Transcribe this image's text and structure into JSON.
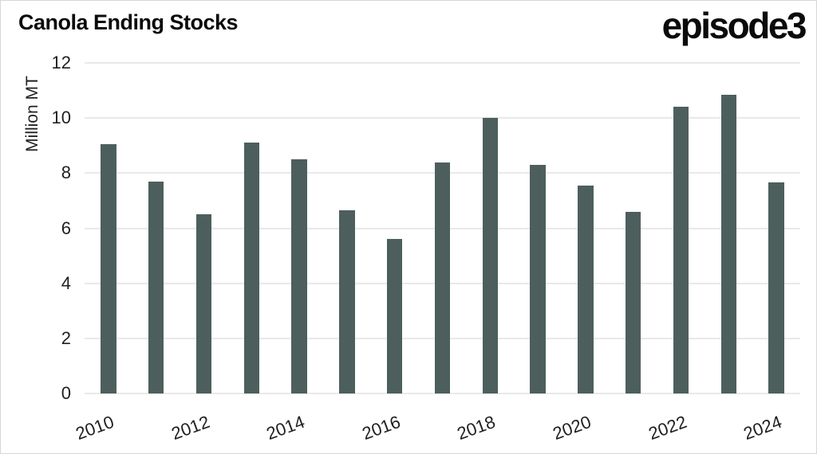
{
  "header": {
    "title": "Canola Ending Stocks",
    "logo": "episode3"
  },
  "y_axis": {
    "label": "Million MT",
    "ticks": [
      0,
      2,
      4,
      6,
      8,
      10,
      12
    ]
  },
  "x_axis": {
    "tick_labels": [
      "2010",
      "2012",
      "2014",
      "2016",
      "2018",
      "2020",
      "2022",
      "2024"
    ]
  },
  "chart_data": {
    "type": "bar",
    "title": "Canola Ending Stocks",
    "xlabel": "",
    "ylabel": "Million MT",
    "ylim": [
      0,
      12
    ],
    "y_tick_step": 2,
    "grid": "horizontal",
    "legend": "none",
    "categories": [
      "2010",
      "2011",
      "2012",
      "2013",
      "2014",
      "2015",
      "2016",
      "2017",
      "2018",
      "2019",
      "2020",
      "2021",
      "2022",
      "2023",
      "2024"
    ],
    "values": [
      9.05,
      7.7,
      6.5,
      9.1,
      8.5,
      6.65,
      5.6,
      8.4,
      10.0,
      8.3,
      7.55,
      6.6,
      10.4,
      10.85,
      7.65
    ],
    "x_labels_shown": [
      "2010",
      "2012",
      "2014",
      "2016",
      "2018",
      "2020",
      "2022",
      "2024"
    ]
  },
  "colors": {
    "bar": "#4d5f5d",
    "grid": "#e9e9e9",
    "tick_text": "#1f1f1f",
    "title_text": "#0b0b0b",
    "background": "#ffffff",
    "border": "#d6d6d6"
  }
}
